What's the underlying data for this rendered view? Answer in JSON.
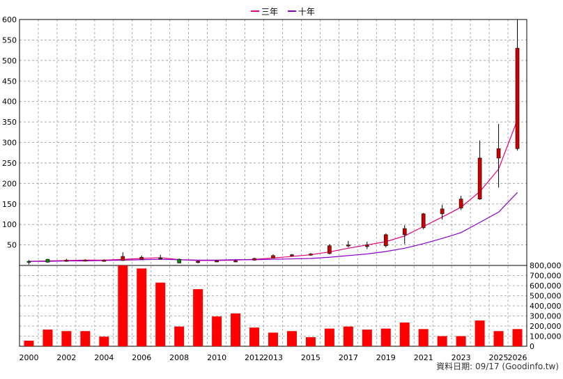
{
  "chart_data": [
    {
      "type": "candlestick",
      "legend_position": "top-center",
      "grid": true,
      "ylim": [
        0,
        600
      ],
      "yticks": [
        50,
        100,
        150,
        200,
        250,
        300,
        350,
        400,
        450,
        500,
        550,
        600
      ],
      "series": [
        {
          "name": "三年",
          "color": "#e4007f"
        },
        {
          "name": "十年",
          "color": "#8b00c8"
        }
      ],
      "candles": [
        {
          "x": 2000,
          "open": 10,
          "close": 9,
          "high": 13,
          "low": 2
        },
        {
          "x": 2001,
          "open": 15,
          "close": 8,
          "high": 16,
          "low": 7
        },
        {
          "x": 2002,
          "open": 10,
          "close": 13,
          "high": 16,
          "low": 9
        },
        {
          "x": 2003,
          "open": 11,
          "close": 13,
          "high": 15,
          "low": 10
        },
        {
          "x": 2004,
          "open": 10,
          "close": 13,
          "high": 15,
          "low": 9
        },
        {
          "x": 2005,
          "open": 12,
          "close": 22,
          "high": 32,
          "low": 11
        },
        {
          "x": 2006,
          "open": 15,
          "close": 20,
          "high": 24,
          "low": 14
        },
        {
          "x": 2007,
          "open": 18,
          "close": 17,
          "high": 26,
          "low": 15
        },
        {
          "x": 2008,
          "open": 15,
          "close": 6,
          "high": 17,
          "low": 5
        },
        {
          "x": 2009,
          "open": 7,
          "close": 10,
          "high": 12,
          "low": 5
        },
        {
          "x": 2010,
          "open": 10,
          "close": 11,
          "high": 14,
          "low": 9
        },
        {
          "x": 2011,
          "open": 11,
          "close": 11,
          "high": 13,
          "low": 9
        },
        {
          "x": 2012,
          "open": 13,
          "close": 17,
          "high": 19,
          "low": 12
        },
        {
          "x": 2013,
          "open": 18,
          "close": 24,
          "high": 27,
          "low": 17
        },
        {
          "x": 2014,
          "open": 24,
          "close": 26,
          "high": 28,
          "low": 22
        },
        {
          "x": 2015,
          "open": 25,
          "close": 28,
          "high": 30,
          "low": 24
        },
        {
          "x": 2016,
          "open": 29,
          "close": 48,
          "high": 52,
          "low": 27
        },
        {
          "x": 2017,
          "open": 48,
          "close": 50,
          "high": 60,
          "low": 44
        },
        {
          "x": 2018,
          "open": 46,
          "close": 50,
          "high": 58,
          "low": 40
        },
        {
          "x": 2019,
          "open": 48,
          "close": 75,
          "high": 78,
          "low": 44
        },
        {
          "x": 2020,
          "open": 75,
          "close": 90,
          "high": 98,
          "low": 52
        },
        {
          "x": 2021,
          "open": 92,
          "close": 126,
          "high": 128,
          "low": 88
        },
        {
          "x": 2022,
          "open": 126,
          "close": 138,
          "high": 148,
          "low": 112
        },
        {
          "x": 2023,
          "open": 140,
          "close": 162,
          "high": 170,
          "low": 135
        },
        {
          "x": 2024,
          "open": 162,
          "close": 262,
          "high": 305,
          "low": 160
        },
        {
          "x": 2025,
          "open": 262,
          "close": 285,
          "high": 345,
          "low": 190
        },
        {
          "x": 2026,
          "open": 285,
          "close": 530,
          "high": 600,
          "low": 280
        }
      ],
      "moving_averages": {
        "三年": [
          10,
          11,
          12,
          13,
          13,
          15,
          17,
          19,
          14,
          12,
          12,
          13,
          15,
          18,
          22,
          26,
          33,
          42,
          50,
          58,
          72,
          95,
          118,
          142,
          180,
          235,
          355
        ],
        "十年": [
          10,
          10,
          11,
          11,
          12,
          13,
          14,
          15,
          14,
          13,
          13,
          14,
          14,
          15,
          16,
          17,
          20,
          24,
          28,
          34,
          42,
          53,
          66,
          80,
          105,
          130,
          178
        ]
      }
    },
    {
      "type": "bar",
      "grid": true,
      "ylim": [
        0,
        800000
      ],
      "yticks": [
        "0",
        "100,000",
        "200,000",
        "300,000",
        "400,000",
        "500,000",
        "600,000",
        "700,000",
        "800,000"
      ],
      "bar_color": "#ff0000",
      "x": [
        2000,
        2001,
        2002,
        2003,
        2004,
        2005,
        2006,
        2007,
        2008,
        2009,
        2010,
        2011,
        2012,
        2013,
        2014,
        2015,
        2016,
        2017,
        2018,
        2019,
        2020,
        2021,
        2022,
        2023,
        2024,
        2025,
        2026
      ],
      "values": [
        55000,
        165000,
        150000,
        150000,
        95000,
        810000,
        770000,
        630000,
        195000,
        565000,
        295000,
        325000,
        185000,
        135000,
        150000,
        90000,
        175000,
        195000,
        165000,
        175000,
        235000,
        170000,
        100000,
        100000,
        255000,
        150000,
        170000
      ]
    }
  ],
  "x_tick_labels": [
    2000,
    2002,
    2004,
    2006,
    2008,
    2010,
    2012,
    2013,
    2015,
    2017,
    2019,
    2021,
    2023,
    2025,
    2026
  ],
  "colors": {
    "up": "#cc0000",
    "down": "#008800",
    "grid": "#999999"
  },
  "footer": "資料日期: 09/17  (Goodinfo.tw)"
}
